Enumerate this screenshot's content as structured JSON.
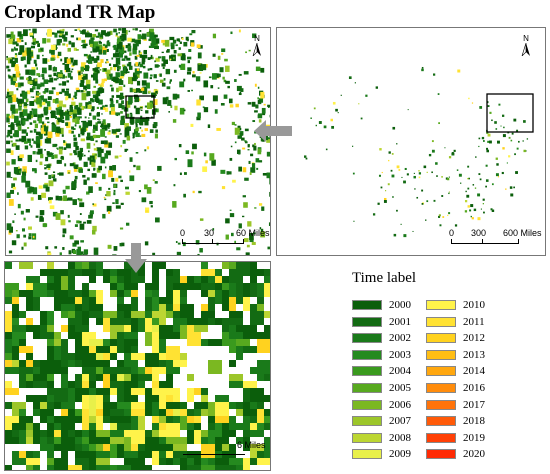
{
  "title": "Cropland TR Map",
  "panels": {
    "regional": {
      "scale": {
        "ticks": [
          "0",
          "30",
          "60 Miles"
        ]
      },
      "north_label": "N",
      "icon": "north-arrow-icon"
    },
    "national": {
      "scale": {
        "ticks": [
          "0",
          "300",
          "600 Miles"
        ]
      },
      "north_label": "N",
      "icon": "north-arrow-icon"
    },
    "local": {
      "scale_label": "6 Miles"
    }
  },
  "legend": {
    "title": "Time label",
    "left_column": [
      {
        "label": "2000",
        "color": "#0b5e0b"
      },
      {
        "label": "2001",
        "color": "#136b13"
      },
      {
        "label": "2002",
        "color": "#1a7a1a"
      },
      {
        "label": "2003",
        "color": "#258a1f"
      },
      {
        "label": "2004",
        "color": "#3a9a1e"
      },
      {
        "label": "2005",
        "color": "#57a91f"
      },
      {
        "label": "2006",
        "color": "#7bb821"
      },
      {
        "label": "2007",
        "color": "#9cc62a"
      },
      {
        "label": "2008",
        "color": "#bcd632"
      },
      {
        "label": "2009",
        "color": "#e8f04a"
      }
    ],
    "right_column": [
      {
        "label": "2010",
        "color": "#fff34a"
      },
      {
        "label": "2011",
        "color": "#ffe233"
      },
      {
        "label": "2012",
        "color": "#ffd21f"
      },
      {
        "label": "2013",
        "color": "#ffbe14"
      },
      {
        "label": "2014",
        "color": "#ffa70f"
      },
      {
        "label": "2016",
        "color": "#ff8c0c"
      },
      {
        "label": "2017",
        "color": "#ff730a"
      },
      {
        "label": "2018",
        "color": "#ff5a08"
      },
      {
        "label": "2019",
        "color": "#ff4006"
      },
      {
        "label": "2020",
        "color": "#ff2a04"
      }
    ]
  },
  "colors": {
    "pointer_arrow": "#999999",
    "inset_box": "#000000"
  }
}
